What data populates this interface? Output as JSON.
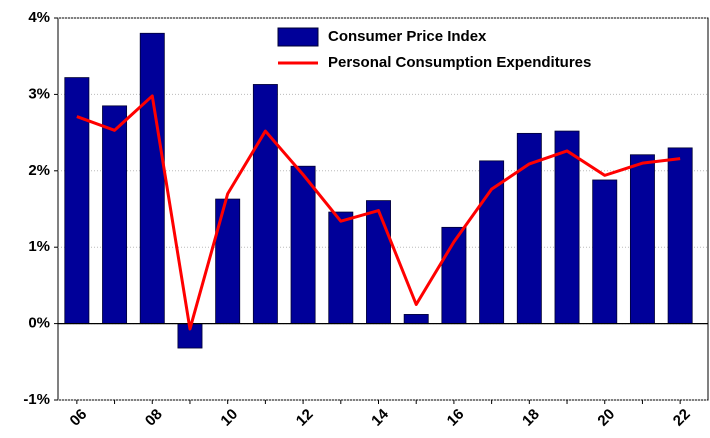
{
  "chart_data": {
    "type": "bar_line",
    "categories": [
      "06",
      null,
      "08",
      null,
      "10",
      null,
      "12",
      null,
      "14",
      null,
      "16",
      null,
      "18",
      null,
      "20",
      null,
      "22"
    ],
    "series": [
      {
        "name": "Consumer Price Index",
        "type": "bar",
        "color": "#000099",
        "values": [
          3.22,
          2.85,
          3.8,
          -0.32,
          1.63,
          3.13,
          2.06,
          1.46,
          1.61,
          0.12,
          1.26,
          2.13,
          2.49,
          2.52,
          1.88,
          2.21,
          2.3
        ]
      },
      {
        "name": "Personal Consumption Expenditures",
        "type": "line",
        "color": "#ff0000",
        "values": [
          2.71,
          2.53,
          2.98,
          -0.07,
          1.7,
          2.52,
          1.95,
          1.34,
          1.48,
          0.25,
          1.07,
          1.76,
          2.09,
          2.26,
          1.94,
          2.1,
          2.16
        ]
      }
    ],
    "ylim": [
      -1,
      4
    ],
    "yticks": [
      {
        "value": -1,
        "label": "-1%"
      },
      {
        "value": 0,
        "label": "0%"
      },
      {
        "value": 1,
        "label": "1%"
      },
      {
        "value": 2,
        "label": "2%"
      },
      {
        "value": 3,
        "label": "3%"
      },
      {
        "value": 4,
        "label": "4%"
      }
    ],
    "grid": true,
    "legend": "top"
  }
}
